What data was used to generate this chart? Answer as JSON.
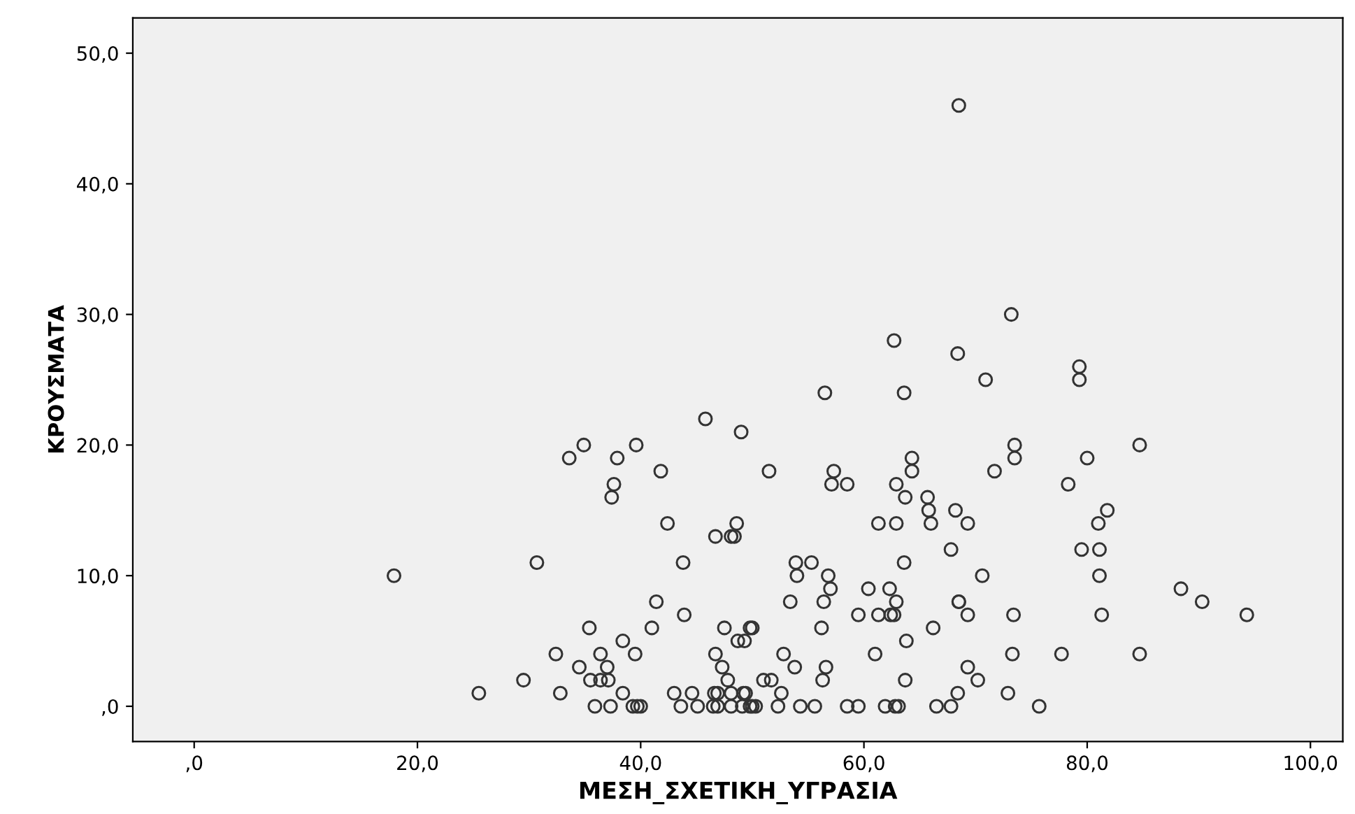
{
  "chart_data": {
    "type": "scatter",
    "xlabel": "ΜΕΣΗ_ΣΧΕΤΙΚΗ_ΥΓΡΑΣΙΑ",
    "ylabel": "ΚΡΟΥΣΜΑΤΑ",
    "marker": "circle",
    "grid": false,
    "xlim": [
      -5.5,
      102.9
    ],
    "ylim": [
      -2.7,
      52.7
    ],
    "xticks": [
      {
        "value": 0,
        "label": ",0"
      },
      {
        "value": 20,
        "label": "20,0"
      },
      {
        "value": 40,
        "label": "40,0"
      },
      {
        "value": 60,
        "label": "60,0"
      },
      {
        "value": 80,
        "label": "80,0"
      },
      {
        "value": 100,
        "label": "100,0"
      }
    ],
    "yticks": [
      {
        "value": 0,
        "label": ",0"
      },
      {
        "value": 10,
        "label": "10,0"
      },
      {
        "value": 20,
        "label": "20,0"
      },
      {
        "value": 30,
        "label": "30,0"
      },
      {
        "value": 40,
        "label": "40,0"
      },
      {
        "value": 50,
        "label": "50,0"
      }
    ],
    "series": [
      {
        "color": "#333333",
        "x": [
          68.5,
          73.2,
          68.4,
          70.9,
          79.3,
          79.3,
          73.5,
          73.5,
          84.7,
          80.0,
          71.7,
          78.3,
          65.7,
          65.8,
          68.2,
          66.0,
          69.3,
          81.8,
          81.0,
          67.8,
          79.5,
          81.1,
          70.6,
          81.1,
          88.4,
          90.3,
          94.3,
          68.5,
          68.5,
          69.3,
          73.4,
          81.3,
          66.2,
          73.3,
          77.7,
          84.7,
          69.3,
          70.2,
          68.4,
          72.9,
          66.5,
          67.8,
          75.7,
          62.7,
          56.5,
          63.6,
          45.8,
          49.0,
          34.9,
          39.6,
          33.6,
          37.9,
          64.3,
          41.8,
          51.5,
          57.3,
          64.3,
          37.6,
          57.1,
          58.5,
          62.9,
          37.4,
          63.7,
          42.4,
          48.6,
          61.3,
          62.9,
          46.7,
          48.1,
          48.4,
          30.7,
          43.8,
          53.9,
          55.3,
          63.6,
          54.0,
          56.8,
          57.0,
          60.4,
          62.3,
          41.4,
          53.4,
          56.4,
          62.9,
          43.9,
          59.5,
          61.3,
          62.4,
          62.7,
          35.4,
          41.0,
          47.5,
          49.8,
          50.0,
          56.2,
          38.4,
          48.7,
          49.3,
          63.8,
          32.4,
          36.4,
          39.5,
          46.7,
          52.8,
          61.0,
          34.5,
          37.0,
          47.3,
          53.8,
          56.6,
          35.5,
          36.4,
          37.1,
          47.8,
          51.0,
          51.7,
          56.3,
          63.7,
          32.8,
          38.4,
          43.0,
          44.6,
          46.6,
          46.9,
          48.1,
          49.2,
          49.4,
          52.6,
          35.9,
          37.3,
          39.3,
          39.7,
          40.0,
          43.6,
          45.1,
          46.5,
          46.9,
          48.1,
          49.1,
          49.8,
          50.0,
          50.3,
          52.3,
          54.3,
          55.6,
          58.5,
          59.5,
          61.9,
          62.8,
          63.1,
          17.9,
          25.5,
          29.5
        ],
        "values": [
          46,
          30,
          27,
          25,
          26,
          25,
          20,
          19,
          20,
          19,
          18,
          17,
          16,
          15,
          15,
          14,
          14,
          15,
          14,
          12,
          12,
          12,
          10,
          10,
          9,
          8,
          7,
          8,
          8,
          7,
          7,
          7,
          6,
          4,
          4,
          4,
          3,
          2,
          1,
          1,
          0,
          0,
          0,
          28,
          24,
          24,
          22,
          21,
          20,
          20,
          19,
          19,
          19,
          18,
          18,
          18,
          18,
          17,
          17,
          17,
          17,
          16,
          16,
          14,
          14,
          14,
          14,
          13,
          13,
          13,
          11,
          11,
          11,
          11,
          11,
          10,
          10,
          9,
          9,
          9,
          8,
          8,
          8,
          8,
          7,
          7,
          7,
          7,
          7,
          6,
          6,
          6,
          6,
          6,
          6,
          5,
          5,
          5,
          5,
          4,
          4,
          4,
          4,
          4,
          4,
          3,
          3,
          3,
          3,
          3,
          2,
          2,
          2,
          2,
          2,
          2,
          2,
          2,
          1,
          1,
          1,
          1,
          1,
          1,
          1,
          1,
          1,
          1,
          0,
          0,
          0,
          0,
          0,
          0,
          0,
          0,
          0,
          0,
          0,
          0,
          0,
          0,
          0,
          0,
          0,
          0,
          0,
          0,
          0,
          0,
          10,
          1,
          2
        ]
      }
    ]
  }
}
